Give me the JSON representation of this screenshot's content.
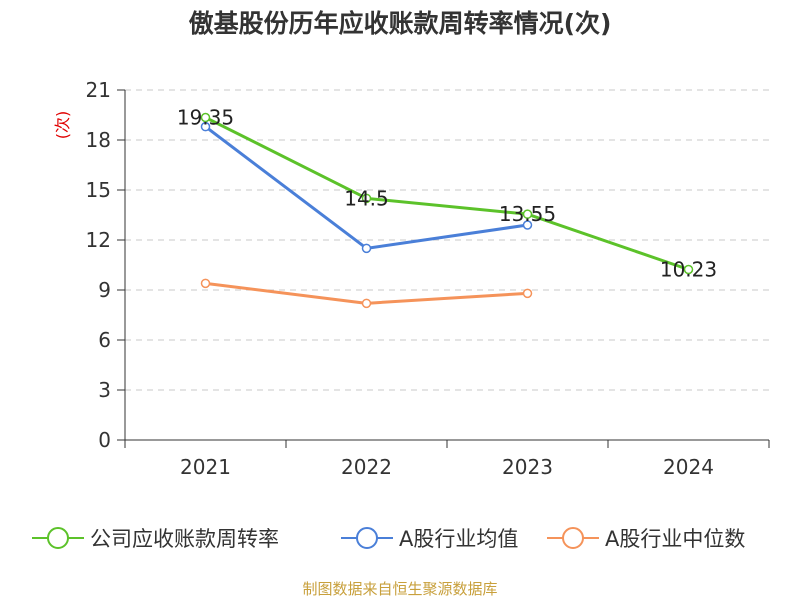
{
  "title": "傲基股份历年应收账款周转率情况(次)",
  "source_note": "制图数据来自恒生聚源数据库",
  "colors": {
    "series_0": "#5cc22a",
    "series_1": "#4a7fd8",
    "series_2": "#f5935a",
    "axis": "#333333",
    "grid": "#c8c8c8",
    "unit": "#e00000"
  },
  "chart_data": {
    "type": "line",
    "title": "傲基股份历年应收账款周转率情况(次)",
    "xlabel": "",
    "ylabel": "(次)",
    "categories": [
      "2021",
      "2022",
      "2023",
      "2024"
    ],
    "ylim": [
      0,
      21
    ],
    "yticks": [
      0,
      3,
      6,
      9,
      12,
      15,
      18,
      21
    ],
    "grid": true,
    "legend_position": "bottom",
    "series": [
      {
        "name": "公司应收账款周转率",
        "values": [
          19.35,
          14.5,
          13.55,
          10.23
        ],
        "labels": [
          "19.35",
          "14.5",
          "13.55",
          "10.23"
        ]
      },
      {
        "name": "A股行业均值",
        "values": [
          18.8,
          11.5,
          12.9,
          null
        ]
      },
      {
        "name": "A股行业中位数",
        "values": [
          9.4,
          8.2,
          8.8,
          null
        ]
      }
    ]
  }
}
